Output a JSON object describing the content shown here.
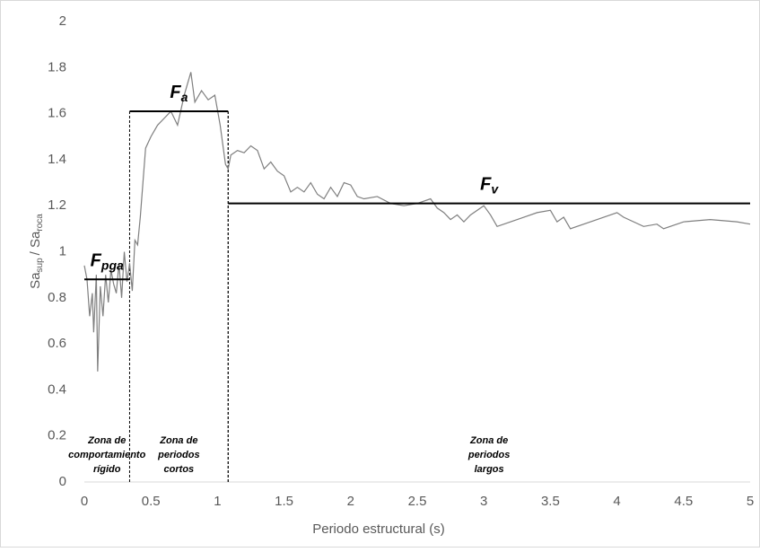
{
  "chart_data": {
    "type": "line",
    "y_label": [
      "Sa",
      "sup",
      "/ Sa",
      "roca"
    ],
    "x_label": "Periodo estructural (s)",
    "xlim": [
      0,
      5
    ],
    "ylim": [
      0,
      2
    ],
    "xticks": [
      0,
      0.5,
      1,
      1.5,
      2,
      2.5,
      3,
      3.5,
      4,
      4.5,
      5
    ],
    "yticks": [
      0,
      0.2,
      0.4,
      0.6,
      0.8,
      1,
      1.2,
      1.4,
      1.6,
      1.8,
      2
    ],
    "x": [
      0,
      0.02,
      0.04,
      0.06,
      0.07,
      0.09,
      0.1,
      0.12,
      0.14,
      0.16,
      0.18,
      0.2,
      0.22,
      0.24,
      0.26,
      0.28,
      0.3,
      0.32,
      0.34,
      0.36,
      0.38,
      0.4,
      0.42,
      0.44,
      0.46,
      0.5,
      0.55,
      0.6,
      0.65,
      0.7,
      0.75,
      0.8,
      0.83,
      0.88,
      0.93,
      0.98,
      1.02,
      1.06,
      1.08,
      1.1,
      1.15,
      1.2,
      1.25,
      1.3,
      1.35,
      1.4,
      1.45,
      1.5,
      1.55,
      1.6,
      1.65,
      1.7,
      1.75,
      1.8,
      1.85,
      1.9,
      1.95,
      2,
      2.05,
      2.1,
      2.2,
      2.3,
      2.4,
      2.5,
      2.6,
      2.65,
      2.7,
      2.75,
      2.8,
      2.85,
      2.9,
      3,
      3.05,
      3.1,
      3.2,
      3.3,
      3.4,
      3.5,
      3.55,
      3.6,
      3.65,
      3.8,
      4,
      4.05,
      4.2,
      4.3,
      4.35,
      4.5,
      4.7,
      4.9,
      5
    ],
    "series": [
      {
        "color": "#7f7f7f",
        "values": [
          0.94,
          0.88,
          0.72,
          0.82,
          0.65,
          0.9,
          0.48,
          0.85,
          0.72,
          0.9,
          0.78,
          0.92,
          0.86,
          0.82,
          0.95,
          0.8,
          1.0,
          0.87,
          0.95,
          0.83,
          1.05,
          1.03,
          1.15,
          1.3,
          1.45,
          1.5,
          1.55,
          1.58,
          1.61,
          1.55,
          1.68,
          1.78,
          1.65,
          1.7,
          1.66,
          1.68,
          1.55,
          1.38,
          1.36,
          1.42,
          1.44,
          1.43,
          1.46,
          1.44,
          1.36,
          1.39,
          1.35,
          1.33,
          1.26,
          1.28,
          1.26,
          1.3,
          1.25,
          1.23,
          1.28,
          1.24,
          1.3,
          1.29,
          1.24,
          1.23,
          1.24,
          1.21,
          1.2,
          1.21,
          1.23,
          1.19,
          1.17,
          1.14,
          1.16,
          1.13,
          1.16,
          1.2,
          1.16,
          1.11,
          1.13,
          1.15,
          1.17,
          1.18,
          1.13,
          1.15,
          1.1,
          1.13,
          1.17,
          1.15,
          1.11,
          1.12,
          1.1,
          1.13,
          1.14,
          1.13,
          1.12
        ]
      }
    ],
    "reference_lines": [
      {
        "label": [
          "F",
          "pga"
        ],
        "y": 0.88,
        "x": [
          0,
          0.34
        ]
      },
      {
        "label": [
          "F",
          "a"
        ],
        "y": 1.61,
        "x": [
          0.34,
          1.08
        ]
      },
      {
        "label": [
          "F",
          "v"
        ],
        "y": 1.21,
        "x": [
          1.08,
          5
        ]
      }
    ],
    "zones": [
      {
        "x": [
          0,
          0.34
        ],
        "label": [
          "Zona de",
          "comportamiento",
          "rígido"
        ]
      },
      {
        "x": [
          0.34,
          1.08
        ],
        "label": [
          "Zona de",
          "periodos",
          "cortos"
        ]
      },
      {
        "x": [
          1.08,
          5
        ],
        "label": [
          "Zona de",
          "periodos",
          "largos"
        ]
      }
    ]
  }
}
